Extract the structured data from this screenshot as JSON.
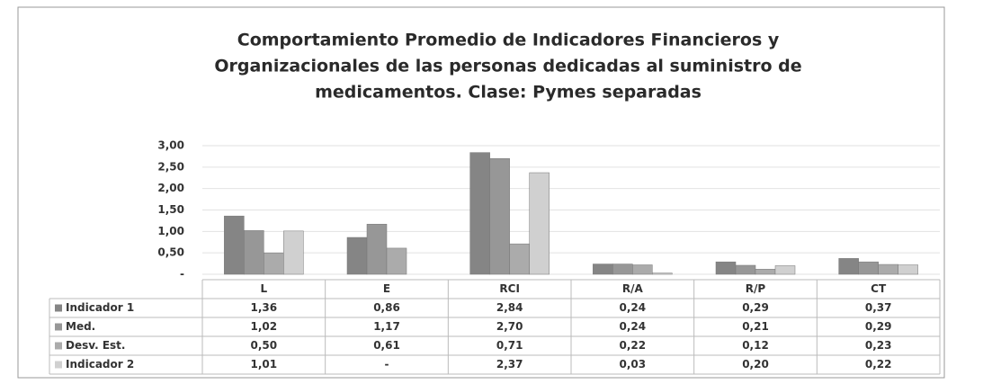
{
  "chart_data": {
    "type": "bar",
    "title": [
      "Comportamiento Promedio  de Indicadores Financieros y",
      "Organizacionales  de las personas dedicadas al suministro de",
      "medicamentos. Clase: Pymes separadas"
    ],
    "categories": [
      "L",
      "E",
      "RCI",
      "R/A",
      "R/P",
      "CT"
    ],
    "series": [
      {
        "name": "Indicador 1",
        "color": "#858585",
        "values": [
          1.36,
          0.86,
          2.84,
          0.24,
          0.29,
          0.37
        ],
        "value_labels": [
          "1,36",
          "0,86",
          "2,84",
          "0,24",
          "0,29",
          "0,37"
        ]
      },
      {
        "name": "Med.",
        "color": "#979797",
        "values": [
          1.02,
          1.17,
          2.7,
          0.24,
          0.21,
          0.29
        ],
        "value_labels": [
          "1,02",
          "1,17",
          "2,70",
          "0,24",
          "0,21",
          "0,29"
        ]
      },
      {
        "name": "Desv. Est.",
        "color": "#ababab",
        "values": [
          0.5,
          0.61,
          0.71,
          0.22,
          0.12,
          0.23
        ],
        "value_labels": [
          "0,50",
          "0,61",
          "0,71",
          "0,22",
          "0,12",
          "0,23"
        ]
      },
      {
        "name": "Indicador 2",
        "color": "#d0d0d0",
        "values": [
          1.01,
          0,
          2.37,
          0.03,
          0.2,
          0.22
        ],
        "value_labels": [
          "1,01",
          "-",
          "2,37",
          "0,03",
          "0,20",
          "0,22"
        ]
      }
    ],
    "ylim": [
      0,
      3
    ],
    "yticks": [
      {
        "value": 0,
        "label": "-"
      },
      {
        "value": 0.5,
        "label": "0,50"
      },
      {
        "value": 1,
        "label": "1,00"
      },
      {
        "value": 1.5,
        "label": "1,50"
      },
      {
        "value": 2,
        "label": "2,00"
      },
      {
        "value": 2.5,
        "label": "2,50"
      },
      {
        "value": 3,
        "label": "3,00"
      }
    ],
    "grid": true
  }
}
